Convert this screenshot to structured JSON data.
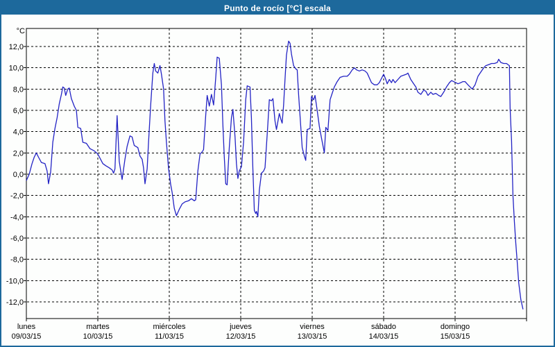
{
  "window": {
    "title": "Punto de rocío [°C] escala"
  },
  "colors": {
    "titlebar": "#1d699c",
    "frame": "#1d699c",
    "series_line": "#2222c4",
    "grid": "#000000",
    "text": "#000000",
    "plot_background": "#fdfefd"
  },
  "chart_data": {
    "type": "line",
    "title": "Punto de rocío [°C] escala",
    "ylabel": "°C",
    "y_unit_label": "°C",
    "ylim": [
      -13.6,
      13.4
    ],
    "grid": "dashed",
    "legend_position": "none",
    "y_ticks": {
      "values": [
        12,
        10,
        8,
        6,
        4,
        2,
        0,
        -2,
        -4,
        -6,
        -8,
        -10,
        -12
      ],
      "labels": [
        "12,0",
        "10,0",
        "8,0",
        "6,0",
        "4,0",
        "2,0",
        "0,0",
        "-2,0",
        "-4,0",
        "-6,0",
        "-8,0",
        "-10,0",
        "-12,0"
      ]
    },
    "x_axis": {
      "unit": "days",
      "range": [
        0,
        7
      ],
      "day_labels": [
        {
          "name": "lunes",
          "date": "09/03/15"
        },
        {
          "name": "martes",
          "date": "10/03/15"
        },
        {
          "name": "miércoles",
          "date": "11/03/15"
        },
        {
          "name": "jueves",
          "date": "12/03/15"
        },
        {
          "name": "viernes",
          "date": "13/03/15"
        },
        {
          "name": "sábado",
          "date": "14/03/15"
        },
        {
          "name": "domingo",
          "date": "15/03/15"
        }
      ]
    },
    "series": [
      {
        "name": "Punto de rocío [°C]",
        "color": "#2222c4",
        "points": [
          [
            0.0,
            -0.6
          ],
          [
            0.04,
            0.0
          ],
          [
            0.08,
            1.0
          ],
          [
            0.11,
            1.6
          ],
          [
            0.14,
            2.0
          ],
          [
            0.17,
            1.6
          ],
          [
            0.21,
            1.1
          ],
          [
            0.26,
            1.0
          ],
          [
            0.29,
            0.3
          ],
          [
            0.31,
            -0.9
          ],
          [
            0.34,
            0.2
          ],
          [
            0.37,
            3.0
          ],
          [
            0.4,
            4.3
          ],
          [
            0.43,
            5.3
          ],
          [
            0.46,
            6.6
          ],
          [
            0.49,
            7.5
          ],
          [
            0.51,
            8.2
          ],
          [
            0.53,
            8.1
          ],
          [
            0.55,
            7.4
          ],
          [
            0.58,
            8.0
          ],
          [
            0.6,
            8.1
          ],
          [
            0.63,
            7.1
          ],
          [
            0.67,
            6.4
          ],
          [
            0.7,
            6.0
          ],
          [
            0.72,
            4.4
          ],
          [
            0.76,
            4.3
          ],
          [
            0.79,
            3.0
          ],
          [
            0.84,
            2.9
          ],
          [
            0.89,
            2.4
          ],
          [
            0.95,
            2.2
          ],
          [
            1.0,
            1.9
          ],
          [
            1.07,
            1.0
          ],
          [
            1.11,
            0.8
          ],
          [
            1.16,
            0.6
          ],
          [
            1.2,
            0.4
          ],
          [
            1.22,
            0.1
          ],
          [
            1.24,
            0.5
          ],
          [
            1.27,
            5.5
          ],
          [
            1.3,
            1.2
          ],
          [
            1.34,
            -0.5
          ],
          [
            1.38,
            1.4
          ],
          [
            1.41,
            2.6
          ],
          [
            1.45,
            3.6
          ],
          [
            1.48,
            3.5
          ],
          [
            1.51,
            2.7
          ],
          [
            1.56,
            2.5
          ],
          [
            1.59,
            1.7
          ],
          [
            1.62,
            1.4
          ],
          [
            1.64,
            0.6
          ],
          [
            1.66,
            -0.9
          ],
          [
            1.69,
            0.5
          ],
          [
            1.71,
            3.0
          ],
          [
            1.74,
            6.5
          ],
          [
            1.77,
            9.5
          ],
          [
            1.79,
            10.4
          ],
          [
            1.81,
            9.7
          ],
          [
            1.84,
            9.5
          ],
          [
            1.87,
            10.2
          ],
          [
            1.89,
            9.4
          ],
          [
            1.92,
            8.0
          ],
          [
            1.94,
            5.0
          ],
          [
            1.96,
            3.0
          ],
          [
            1.99,
            0.5
          ],
          [
            2.02,
            -1.0
          ],
          [
            2.04,
            -1.7
          ],
          [
            2.07,
            -3.2
          ],
          [
            2.1,
            -3.9
          ],
          [
            2.14,
            -3.3
          ],
          [
            2.18,
            -2.8
          ],
          [
            2.22,
            -2.6
          ],
          [
            2.27,
            -2.5
          ],
          [
            2.31,
            -2.3
          ],
          [
            2.35,
            -2.5
          ],
          [
            2.37,
            -2.4
          ],
          [
            2.4,
            0.3
          ],
          [
            2.43,
            1.9
          ],
          [
            2.46,
            2.1
          ],
          [
            2.48,
            2.3
          ],
          [
            2.51,
            5.5
          ],
          [
            2.53,
            7.4
          ],
          [
            2.56,
            6.4
          ],
          [
            2.59,
            7.5
          ],
          [
            2.62,
            6.5
          ],
          [
            2.65,
            9.0
          ],
          [
            2.67,
            11.0
          ],
          [
            2.7,
            10.9
          ],
          [
            2.73,
            8.4
          ],
          [
            2.75,
            4.6
          ],
          [
            2.77,
            1.6
          ],
          [
            2.79,
            -0.9
          ],
          [
            2.81,
            -1.0
          ],
          [
            2.84,
            2.5
          ],
          [
            2.87,
            5.3
          ],
          [
            2.89,
            6.1
          ],
          [
            2.92,
            3.5
          ],
          [
            2.94,
            1.0
          ],
          [
            2.96,
            -0.4
          ],
          [
            2.98,
            0.3
          ],
          [
            3.01,
            0.7
          ],
          [
            3.04,
            3.0
          ],
          [
            3.07,
            7.0
          ],
          [
            3.09,
            8.3
          ],
          [
            3.13,
            8.2
          ],
          [
            3.15,
            5.3
          ],
          [
            3.17,
            0.5
          ],
          [
            3.19,
            -3.4
          ],
          [
            3.21,
            -3.7
          ],
          [
            3.22,
            -3.5
          ],
          [
            3.24,
            -4.0
          ],
          [
            3.26,
            -1.5
          ],
          [
            3.29,
            0.1
          ],
          [
            3.32,
            0.3
          ],
          [
            3.34,
            0.6
          ],
          [
            3.38,
            4.7
          ],
          [
            3.4,
            7.0
          ],
          [
            3.43,
            6.9
          ],
          [
            3.45,
            7.1
          ],
          [
            3.48,
            5.0
          ],
          [
            3.5,
            4.2
          ],
          [
            3.54,
            5.7
          ],
          [
            3.56,
            5.2
          ],
          [
            3.58,
            4.8
          ],
          [
            3.6,
            6.5
          ],
          [
            3.62,
            9.0
          ],
          [
            3.64,
            11.2
          ],
          [
            3.67,
            12.5
          ],
          [
            3.69,
            12.3
          ],
          [
            3.71,
            11.3
          ],
          [
            3.74,
            10.2
          ],
          [
            3.77,
            9.9
          ],
          [
            3.79,
            9.8
          ],
          [
            3.81,
            7.5
          ],
          [
            3.84,
            4.5
          ],
          [
            3.86,
            2.5
          ],
          [
            3.89,
            1.7
          ],
          [
            3.91,
            1.3
          ],
          [
            3.93,
            4.2
          ],
          [
            3.97,
            4.3
          ],
          [
            3.99,
            7.3
          ],
          [
            4.02,
            7.0
          ],
          [
            4.04,
            7.4
          ],
          [
            4.07,
            6.0
          ],
          [
            4.1,
            4.5
          ],
          [
            4.13,
            3.4
          ],
          [
            4.17,
            2.0
          ],
          [
            4.19,
            4.4
          ],
          [
            4.22,
            4.1
          ],
          [
            4.25,
            7.0
          ],
          [
            4.28,
            7.6
          ],
          [
            4.31,
            8.2
          ],
          [
            4.35,
            8.7
          ],
          [
            4.39,
            9.1
          ],
          [
            4.44,
            9.2
          ],
          [
            4.49,
            9.2
          ],
          [
            4.52,
            9.4
          ],
          [
            4.56,
            9.8
          ],
          [
            4.59,
            10.0
          ],
          [
            4.62,
            9.8
          ],
          [
            4.66,
            9.7
          ],
          [
            4.7,
            9.8
          ],
          [
            4.74,
            9.7
          ],
          [
            4.77,
            9.5
          ],
          [
            4.81,
            8.9
          ],
          [
            4.83,
            8.6
          ],
          [
            4.87,
            8.4
          ],
          [
            4.91,
            8.4
          ],
          [
            4.94,
            8.6
          ],
          [
            4.97,
            9.0
          ],
          [
            5.0,
            9.4
          ],
          [
            5.03,
            8.9
          ],
          [
            5.05,
            8.5
          ],
          [
            5.08,
            8.9
          ],
          [
            5.11,
            8.6
          ],
          [
            5.13,
            8.9
          ],
          [
            5.16,
            8.6
          ],
          [
            5.2,
            8.9
          ],
          [
            5.24,
            9.2
          ],
          [
            5.28,
            9.3
          ],
          [
            5.32,
            9.4
          ],
          [
            5.34,
            9.5
          ],
          [
            5.38,
            8.9
          ],
          [
            5.42,
            8.5
          ],
          [
            5.45,
            8.2
          ],
          [
            5.48,
            7.7
          ],
          [
            5.52,
            7.5
          ],
          [
            5.56,
            7.9
          ],
          [
            5.59,
            7.8
          ],
          [
            5.62,
            7.4
          ],
          [
            5.66,
            7.7
          ],
          [
            5.69,
            7.5
          ],
          [
            5.73,
            7.6
          ],
          [
            5.77,
            7.4
          ],
          [
            5.8,
            7.3
          ],
          [
            5.84,
            7.7
          ],
          [
            5.88,
            8.2
          ],
          [
            5.92,
            8.6
          ],
          [
            5.95,
            8.8
          ],
          [
            5.98,
            8.7
          ],
          [
            6.01,
            8.6
          ],
          [
            6.04,
            8.5
          ],
          [
            6.08,
            8.6
          ],
          [
            6.11,
            8.7
          ],
          [
            6.14,
            8.7
          ],
          [
            6.18,
            8.4
          ],
          [
            6.21,
            8.2
          ],
          [
            6.24,
            8.0
          ],
          [
            6.28,
            8.4
          ],
          [
            6.32,
            9.2
          ],
          [
            6.36,
            9.6
          ],
          [
            6.4,
            10.0
          ],
          [
            6.43,
            10.2
          ],
          [
            6.47,
            10.3
          ],
          [
            6.51,
            10.4
          ],
          [
            6.55,
            10.4
          ],
          [
            6.59,
            10.5
          ],
          [
            6.61,
            10.8
          ],
          [
            6.64,
            10.5
          ],
          [
            6.68,
            10.4
          ],
          [
            6.72,
            10.4
          ],
          [
            6.74,
            10.3
          ],
          [
            6.76,
            10.2
          ],
          [
            6.77,
            6.2
          ],
          [
            6.79,
            3.1
          ],
          [
            6.81,
            -2.0
          ],
          [
            6.83,
            -4.5
          ],
          [
            6.85,
            -6.5
          ],
          [
            6.87,
            -8.3
          ],
          [
            6.89,
            -10.2
          ],
          [
            6.92,
            -11.8
          ],
          [
            6.95,
            -12.7
          ]
        ]
      }
    ]
  }
}
